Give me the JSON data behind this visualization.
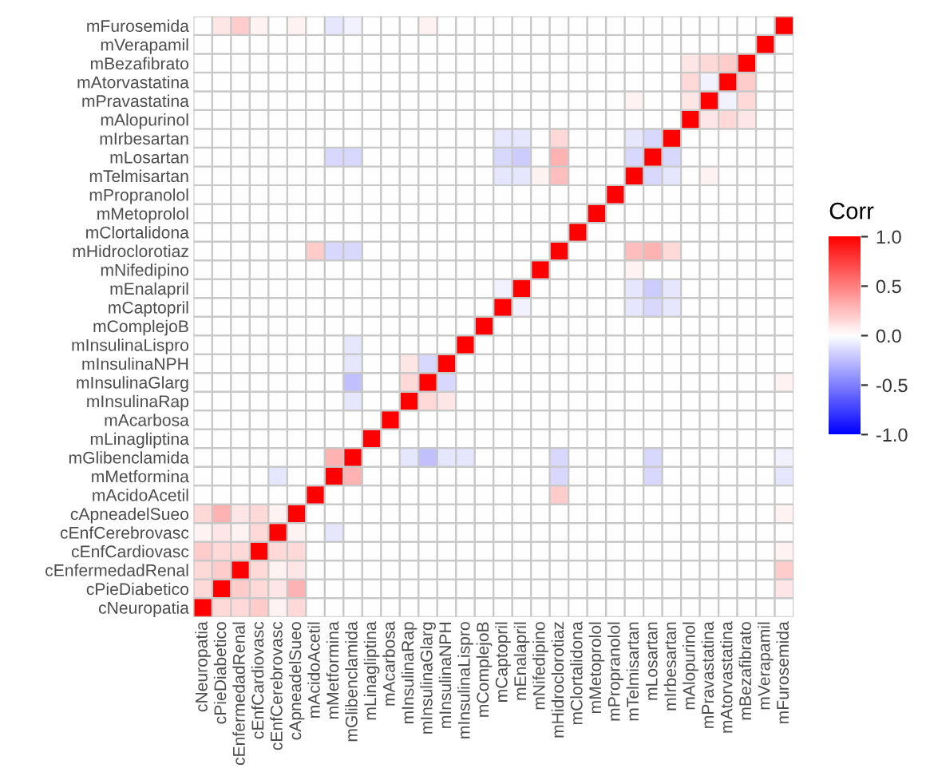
{
  "chart_data": {
    "type": "heatmap",
    "clabel": "Corr",
    "clim": [
      -1,
      1
    ],
    "cticks": [
      {
        "value": -1,
        "label": "-1.0"
      },
      {
        "value": -0.5,
        "label": "-0.5"
      },
      {
        "value": 0,
        "label": "0.0"
      },
      {
        "value": 0.5,
        "label": "0.5"
      },
      {
        "value": 1,
        "label": "1.0"
      }
    ],
    "categories": [
      "cNeuropatia",
      "cPieDiabetico",
      "cEnfermedadRenal",
      "cEnfCardiovasc",
      "cEnfCerebrovasc",
      "cApneadelSueo",
      "mAcidoAcetil",
      "mMetformina",
      "mGlibenclamida",
      "mLinagliptina",
      "mAcarbosa",
      "mInsulinaRap",
      "mInsulinaGlarg",
      "mInsulinaNPH",
      "mInsulinaLispro",
      "mComplejoB",
      "mCaptopril",
      "mEnalapril",
      "mNifedipino",
      "mHidroclorotiaz",
      "mClortalidona",
      "mMetoprolol",
      "mPropranolol",
      "mTelmisartan",
      "mLosartan",
      "mIrbesartan",
      "mAlopurinol",
      "mPravastatina",
      "mAtorvastatina",
      "mBezafibrato",
      "mVerapamil",
      "mFurosemida"
    ],
    "y_categories": [
      "mFurosemida",
      "mVerapamil",
      "mBezafibrato",
      "mAtorvastatina",
      "mPravastatina",
      "mAlopurinol",
      "mIrbesartan",
      "mLosartan",
      "mTelmisartan",
      "mPropranolol",
      "mMetoprolol",
      "mClortalidona",
      "mHidroclorotiaz",
      "mNifedipino",
      "mEnalapril",
      "mCaptopril",
      "mComplejoB",
      "mInsulinaLispro",
      "mInsulinaNPH",
      "mInsulinaGlarg",
      "mInsulinaRap",
      "mAcarbosa",
      "mLinagliptina",
      "mGlibenclamida",
      "mMetformina",
      "mAcidoAcetil",
      "cApneadelSueo",
      "cEnfCerebrovasc",
      "cEnfCardiovasc",
      "cEnfermedadRenal",
      "cPieDiabetico",
      "cNeuropatia"
    ],
    "cells": [
      [
        0,
        0.1,
        0.2,
        0.05,
        0,
        0.05,
        0,
        -0.1,
        -0.05,
        0,
        0,
        0,
        0.05,
        0,
        0,
        0,
        0,
        0,
        0,
        0,
        0,
        0,
        0,
        0,
        0,
        0,
        0,
        0,
        0,
        0,
        0,
        1
      ],
      [
        0,
        0,
        0,
        0,
        0,
        0,
        0,
        0,
        0,
        0,
        0,
        0,
        0,
        0,
        0,
        0,
        0,
        0,
        0,
        0,
        0,
        0,
        0,
        0,
        0,
        0,
        0,
        0,
        0,
        0,
        1,
        0
      ],
      [
        0,
        0,
        0,
        0,
        0,
        0,
        0,
        0,
        0,
        0,
        0,
        0,
        0,
        0,
        0,
        0,
        0,
        0,
        0,
        0,
        0,
        0,
        0,
        0,
        0,
        0,
        0.1,
        0.15,
        0.2,
        1,
        0,
        0
      ],
      [
        0,
        0,
        0,
        0,
        0,
        0,
        0,
        0,
        0,
        0,
        0,
        0,
        0,
        0,
        0,
        0,
        0,
        0,
        0,
        0,
        0,
        0,
        0,
        0,
        0,
        0,
        0.15,
        -0.05,
        1,
        0.2,
        0,
        0
      ],
      [
        0,
        0,
        0,
        0,
        0,
        0,
        0,
        0,
        0,
        0,
        0,
        0,
        0,
        0,
        0,
        0,
        0,
        0,
        0,
        0,
        0,
        0,
        0,
        0.05,
        0,
        0,
        0.1,
        1,
        -0.05,
        0.15,
        0,
        0
      ],
      [
        0,
        0,
        0,
        0,
        0,
        0,
        0,
        0,
        0,
        0,
        0,
        0,
        0,
        0,
        0,
        0,
        0,
        0,
        0,
        0,
        0,
        0,
        0,
        0,
        0,
        0,
        1,
        0.1,
        0.15,
        0.1,
        0,
        0
      ],
      [
        0,
        0,
        0,
        0,
        0,
        0,
        0,
        0,
        0,
        0,
        0,
        0,
        0,
        0,
        0,
        0,
        -0.1,
        -0.1,
        0,
        0.15,
        0,
        0,
        0,
        -0.1,
        -0.15,
        1,
        0,
        0,
        0,
        0,
        0,
        0
      ],
      [
        0,
        0,
        0,
        0,
        0,
        0,
        0,
        -0.15,
        -0.15,
        0,
        0,
        0,
        0,
        0,
        0,
        0,
        -0.15,
        -0.2,
        0,
        0.3,
        0,
        0,
        0,
        -0.15,
        1,
        -0.15,
        0,
        0,
        0,
        0,
        0,
        0
      ],
      [
        0,
        0,
        0,
        0,
        0,
        0,
        0,
        0,
        0,
        0,
        0,
        0,
        0,
        0,
        0,
        0,
        -0.1,
        -0.1,
        0.05,
        0.25,
        0,
        0,
        0,
        1,
        -0.15,
        -0.1,
        0,
        0.05,
        0,
        0,
        0,
        0
      ],
      [
        0,
        0,
        0,
        0,
        0,
        0,
        0,
        0,
        0,
        0,
        0,
        0,
        0,
        0,
        0,
        0,
        0,
        0,
        0,
        0,
        0,
        0,
        1,
        0,
        0,
        0,
        0,
        0,
        0,
        0,
        0,
        0
      ],
      [
        0,
        0,
        0,
        0,
        0,
        0,
        0,
        0,
        0,
        0,
        0,
        0,
        0,
        0,
        0,
        0,
        0,
        0,
        0,
        0,
        0,
        1,
        0,
        0,
        0,
        0,
        0,
        0,
        0,
        0,
        0,
        0
      ],
      [
        0,
        0,
        0,
        0,
        0,
        0,
        0,
        0,
        0,
        0,
        0,
        0,
        0,
        0,
        0,
        0,
        0,
        0,
        0,
        0,
        1,
        0,
        0,
        0,
        0,
        0,
        0,
        0,
        0,
        0,
        0,
        0
      ],
      [
        0,
        0,
        0,
        0,
        0,
        0,
        0.2,
        -0.15,
        -0.15,
        0,
        0,
        0,
        0,
        0,
        0,
        0,
        0,
        0,
        0,
        1,
        0,
        0,
        0,
        0.25,
        0.3,
        0.15,
        0,
        0,
        0,
        0,
        0,
        0
      ],
      [
        0,
        0,
        0,
        0,
        0,
        0,
        0,
        0,
        0,
        0,
        0,
        0,
        0,
        0,
        0,
        0,
        0,
        0,
        1,
        0,
        0,
        0,
        0,
        0.05,
        0,
        0,
        0,
        0,
        0,
        0,
        0,
        0
      ],
      [
        0,
        0,
        0,
        0,
        0,
        0,
        0,
        0,
        0,
        0,
        0,
        0,
        0,
        0,
        0,
        0,
        -0.05,
        1,
        0,
        0,
        0,
        0,
        0,
        -0.1,
        -0.2,
        -0.1,
        0,
        0,
        0,
        0,
        0,
        0
      ],
      [
        0,
        0,
        0,
        0,
        0,
        0,
        0,
        0,
        0,
        0,
        0,
        0,
        0,
        0,
        0,
        0,
        1,
        -0.05,
        0,
        0,
        0,
        0,
        0,
        -0.1,
        -0.15,
        -0.1,
        0,
        0,
        0,
        0,
        0,
        0
      ],
      [
        0,
        0,
        0,
        0,
        0,
        0,
        0,
        0,
        0,
        0,
        0,
        0,
        0,
        0,
        0,
        1,
        0,
        0,
        0,
        0,
        0,
        0,
        0,
        0,
        0,
        0,
        0,
        0,
        0,
        0,
        0,
        0
      ],
      [
        0,
        0,
        0,
        0,
        0,
        0,
        0,
        0,
        -0.1,
        0,
        0,
        0,
        0,
        0,
        1,
        0,
        0,
        0,
        0,
        0,
        0,
        0,
        0,
        0,
        0,
        0,
        0,
        0,
        0,
        0,
        0,
        0
      ],
      [
        0,
        0,
        0,
        0,
        0,
        0,
        0,
        0,
        -0.1,
        0,
        0,
        0.1,
        -0.15,
        1,
        0,
        0,
        0,
        0,
        0,
        0,
        0,
        0,
        0,
        0,
        0,
        0,
        0,
        0,
        0,
        0,
        0,
        0
      ],
      [
        0,
        0,
        0,
        0,
        0,
        0,
        0,
        0,
        -0.25,
        0,
        0,
        0.15,
        1,
        -0.15,
        0,
        0,
        0,
        0,
        0,
        0,
        0,
        0,
        0,
        0,
        0,
        0,
        0,
        0,
        0,
        0,
        0,
        0.05
      ],
      [
        0,
        0,
        0,
        0,
        0,
        0,
        0,
        0,
        -0.1,
        0,
        0,
        1,
        0.15,
        0.1,
        0,
        0,
        0,
        0,
        0,
        0,
        0,
        0,
        0,
        0,
        0,
        0,
        0,
        0,
        0,
        0,
        0,
        0
      ],
      [
        0,
        0,
        0,
        0,
        0,
        0,
        0,
        0,
        0,
        0,
        1,
        0,
        0,
        0,
        0,
        0,
        0,
        0,
        0,
        0,
        0,
        0,
        0,
        0,
        0,
        0,
        0,
        0,
        0,
        0,
        0,
        0
      ],
      [
        0,
        0,
        0,
        0,
        0,
        0,
        0,
        0,
        0,
        1,
        0,
        0,
        0,
        0,
        0,
        0,
        0,
        0,
        0,
        0,
        0,
        0,
        0,
        0,
        0,
        0,
        0,
        0,
        0,
        0,
        0,
        0
      ],
      [
        0,
        0,
        0,
        0,
        0,
        0,
        0,
        0.3,
        1,
        0,
        0,
        -0.1,
        -0.25,
        -0.1,
        -0.1,
        0,
        0,
        0,
        0,
        -0.15,
        0,
        0,
        0,
        0,
        -0.15,
        0,
        0,
        0,
        0,
        0,
        0,
        -0.05
      ],
      [
        0,
        0,
        0,
        0,
        -0.1,
        0,
        0,
        1,
        0.3,
        0,
        0,
        0,
        0,
        0,
        0,
        0,
        0,
        0,
        0,
        -0.15,
        0,
        0,
        0,
        0,
        -0.15,
        0,
        0,
        0,
        0,
        0,
        0,
        -0.1
      ],
      [
        0,
        0,
        0,
        0,
        0,
        0,
        1,
        0,
        0,
        0,
        0,
        0,
        0,
        0,
        0,
        0,
        0,
        0,
        0,
        0.2,
        0,
        0,
        0,
        0,
        0,
        0,
        0,
        0,
        0,
        0,
        0,
        0
      ],
      [
        0.15,
        0.3,
        0.1,
        0.15,
        0.05,
        1,
        0,
        0,
        0,
        0,
        0,
        0,
        0,
        0,
        0,
        0,
        0,
        0,
        0,
        0,
        0,
        0,
        0,
        0,
        0,
        0,
        0,
        0,
        0,
        0,
        0,
        0.05
      ],
      [
        0.05,
        0.1,
        0.05,
        0.15,
        1,
        0.05,
        0,
        -0.1,
        0,
        0,
        0,
        0,
        0,
        0,
        0,
        0,
        0,
        0,
        0,
        0,
        0,
        0,
        0,
        0,
        0,
        0,
        0,
        0,
        0,
        0,
        0,
        0
      ],
      [
        0.2,
        0.15,
        0.15,
        1,
        0.15,
        0.15,
        0,
        0,
        0,
        0,
        0,
        0,
        0,
        0,
        0,
        0,
        0,
        0,
        0,
        0,
        0,
        0,
        0,
        0,
        0,
        0,
        0,
        0,
        0,
        0,
        0,
        0.05
      ],
      [
        0.15,
        0.2,
        1,
        0.15,
        0.05,
        0.1,
        0,
        0,
        0,
        0,
        0,
        0,
        0,
        0,
        0,
        0,
        0,
        0,
        0,
        0,
        0,
        0,
        0,
        0,
        0,
        0,
        0,
        0,
        0,
        0,
        0,
        0.2
      ],
      [
        0.15,
        1,
        0.2,
        0.15,
        0.1,
        0.3,
        0,
        0,
        0,
        0,
        0,
        0,
        0,
        0,
        0,
        0,
        0,
        0,
        0,
        0,
        0,
        0,
        0,
        0,
        0,
        0,
        0,
        0,
        0,
        0,
        0,
        0.1
      ],
      [
        1,
        0.15,
        0.15,
        0.2,
        0.05,
        0.15,
        0,
        0,
        0,
        0,
        0,
        0,
        0,
        0,
        0,
        0,
        0,
        0,
        0,
        0,
        0,
        0,
        0,
        0,
        0,
        0,
        0,
        0,
        0,
        0,
        0,
        0
      ]
    ]
  }
}
